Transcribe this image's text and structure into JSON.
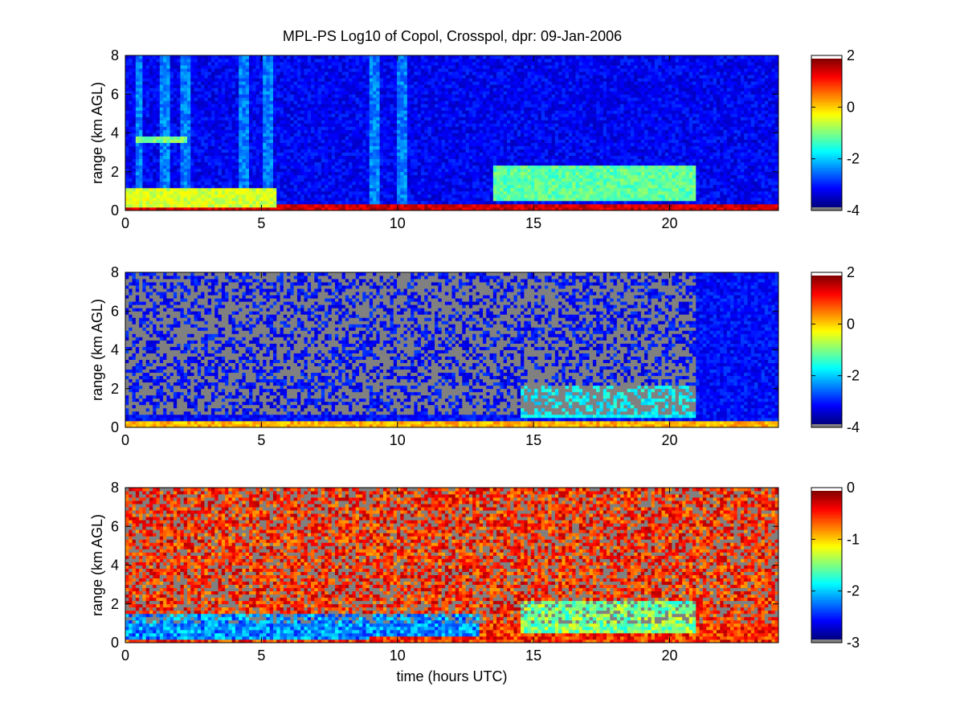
{
  "figure": {
    "title": "MPL-PS Log10 of Copol, Crosspol, dpr: 09-Jan-2006"
  },
  "chart_data": [
    {
      "type": "heatmap",
      "title": "MPL-PS Log10 of Copol, Crosspol, dpr: 09-Jan-2006",
      "xlabel": "",
      "ylabel": "range (km AGL)",
      "xlim": [
        0,
        24
      ],
      "ylim": [
        0,
        8
      ],
      "xticks": [
        "0",
        "5",
        "10",
        "15",
        "20"
      ],
      "yticks": [
        "0",
        "2",
        "4",
        "6",
        "8"
      ],
      "colorbar": {
        "range": [
          -4,
          2
        ],
        "ticks": [
          "2",
          "0",
          "-2",
          "-4"
        ]
      },
      "colormap": "jet",
      "missing_color": "#808080",
      "features": [
        {
          "feature": "surface layer",
          "x_range": [
            0,
            24
          ],
          "y_range": [
            0,
            0.4
          ],
          "value": 1.5
        },
        {
          "feature": "boundary layer",
          "x_range": [
            0,
            5.5
          ],
          "y_range": [
            0.2,
            1.1
          ],
          "value": -0.5
        },
        {
          "feature": "cloud layer",
          "x_range": [
            13.5,
            21
          ],
          "y_range": [
            0.5,
            2.3
          ],
          "value": -1.2
        },
        {
          "feature": "elevated layer",
          "x_range": [
            0.4,
            2.3
          ],
          "y_range": [
            3.5,
            3.8
          ],
          "value": -1
        },
        {
          "feature": "vertical streaks",
          "x_values": [
            0.5,
            1.5,
            2.2,
            4.4,
            5.2,
            9.2,
            10.2
          ],
          "y_range": [
            0,
            8
          ],
          "value": -2.5
        },
        {
          "feature": "background",
          "x_range": [
            0,
            24
          ],
          "y_range": [
            0,
            8
          ],
          "value": -3.3
        }
      ]
    },
    {
      "type": "heatmap",
      "title": "",
      "xlabel": "",
      "ylabel": "range (km AGL)",
      "xlim": [
        0,
        24
      ],
      "ylim": [
        0,
        8
      ],
      "xticks": [
        "0",
        "5",
        "10",
        "15",
        "20"
      ],
      "yticks": [
        "0",
        "2",
        "4",
        "6",
        "8"
      ],
      "colorbar": {
        "range": [
          -4,
          2
        ],
        "ticks": [
          "2",
          "0",
          "-2",
          "-4"
        ]
      },
      "colormap": "jet",
      "missing_color": "#808080",
      "features": [
        {
          "feature": "surface layer",
          "x_range": [
            0,
            24
          ],
          "y_range": [
            0,
            0.4
          ],
          "value": 0.2
        },
        {
          "feature": "cloud layer",
          "x_range": [
            14.5,
            21
          ],
          "y_range": [
            0.5,
            2.2
          ],
          "value": -1.8
        },
        {
          "feature": "background",
          "x_range": [
            0,
            24
          ],
          "y_range": [
            0,
            8
          ],
          "value": -3.2
        },
        {
          "feature": "missing data",
          "x_range": [
            0,
            21
          ],
          "y_range": [
            0.6,
            8
          ],
          "fraction": 0.55
        }
      ]
    },
    {
      "type": "heatmap",
      "title": "",
      "xlabel": "time (hours UTC)",
      "ylabel": "range (km AGL)",
      "xlim": [
        0,
        24
      ],
      "ylim": [
        0,
        8
      ],
      "xticks": [
        "0",
        "5",
        "10",
        "15",
        "20"
      ],
      "yticks": [
        "0",
        "2",
        "4",
        "6",
        "8"
      ],
      "colorbar": {
        "range": [
          -3,
          0
        ],
        "ticks": [
          "0",
          "-1",
          "-2",
          "-3"
        ]
      },
      "colormap": "jet",
      "missing_color": "#808080",
      "features": [
        {
          "feature": "low depolarization layer",
          "x_range": [
            0,
            13
          ],
          "y_range": [
            0.2,
            1.5
          ],
          "value": -2.2
        },
        {
          "feature": "surface layer",
          "x_range": [
            9,
            24
          ],
          "y_range": [
            0,
            0.4
          ],
          "value": -0.5
        },
        {
          "feature": "cloud layer",
          "x_range": [
            14.5,
            21
          ],
          "y_range": [
            0.5,
            2.2
          ],
          "value": -1.5
        },
        {
          "feature": "background",
          "x_range": [
            0,
            24
          ],
          "y_range": [
            1.5,
            8
          ],
          "value": -0.5
        },
        {
          "feature": "missing data",
          "x_range": [
            0,
            24
          ],
          "y_range": [
            1,
            8
          ],
          "fraction": 0.3
        }
      ]
    }
  ]
}
